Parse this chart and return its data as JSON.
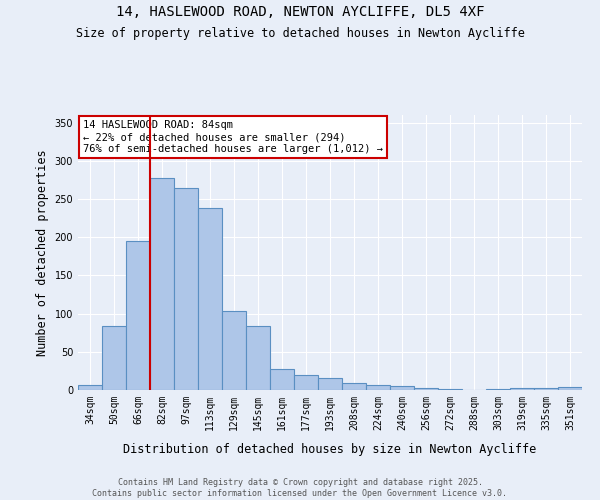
{
  "title1": "14, HASLEWOOD ROAD, NEWTON AYCLIFFE, DL5 4XF",
  "title2": "Size of property relative to detached houses in Newton Aycliffe",
  "xlabel": "Distribution of detached houses by size in Newton Aycliffe",
  "ylabel": "Number of detached properties",
  "bar_labels": [
    "34sqm",
    "50sqm",
    "66sqm",
    "82sqm",
    "97sqm",
    "113sqm",
    "129sqm",
    "145sqm",
    "161sqm",
    "177sqm",
    "193sqm",
    "208sqm",
    "224sqm",
    "240sqm",
    "256sqm",
    "272sqm",
    "288sqm",
    "303sqm",
    "319sqm",
    "335sqm",
    "351sqm"
  ],
  "bar_values": [
    6,
    84,
    195,
    278,
    265,
    238,
    104,
    84,
    27,
    19,
    16,
    9,
    7,
    5,
    3,
    1,
    0,
    1,
    3,
    2,
    4
  ],
  "bar_color": "#aec6e8",
  "bar_edge_color": "#5a8fc2",
  "property_line_idx": 3,
  "annotation_text": "14 HASLEWOOD ROAD: 84sqm\n← 22% of detached houses are smaller (294)\n76% of semi-detached houses are larger (1,012) →",
  "annotation_box_color": "#ffffff",
  "annotation_box_edge": "#cc0000",
  "red_line_color": "#cc0000",
  "footer1": "Contains HM Land Registry data © Crown copyright and database right 2025.",
  "footer2": "Contains public sector information licensed under the Open Government Licence v3.0.",
  "ylim": [
    0,
    360
  ],
  "background_color": "#e8eef8",
  "grid_color": "#ffffff"
}
